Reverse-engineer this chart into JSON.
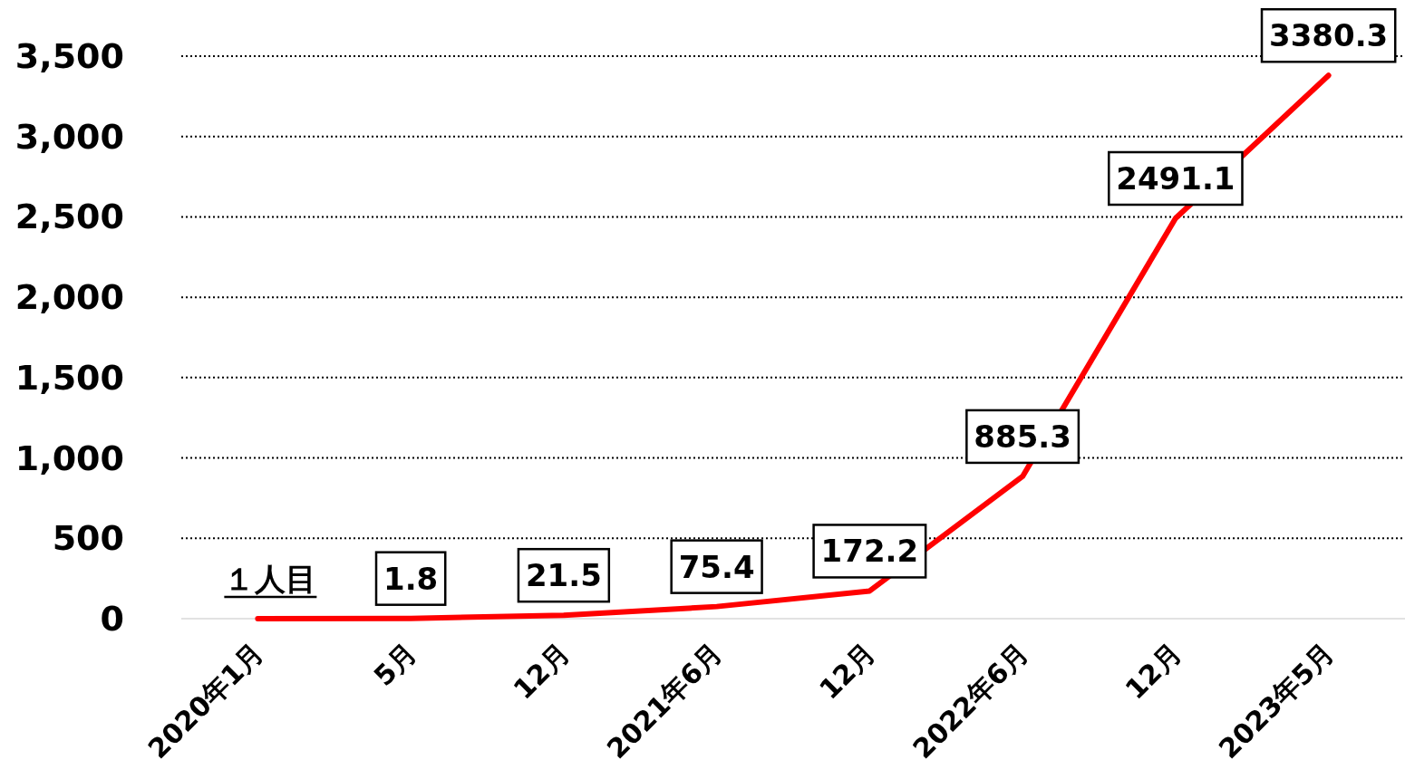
{
  "chart_data": {
    "type": "line",
    "categories": [
      "2020年1月",
      "5月",
      "12月",
      "2021年6月",
      "12月",
      "2022年6月",
      "12月",
      "2023年5月"
    ],
    "series": [
      {
        "color": "#ff0000",
        "values": [
          0,
          1.8,
          21.5,
          75.4,
          172.2,
          885.3,
          2491.1,
          3380.3
        ],
        "value_labels": [
          null,
          "1.8",
          "21.5",
          "75.4",
          "172.2",
          "885.3",
          "2491.1",
          "3380.3"
        ]
      }
    ],
    "annotations": [
      {
        "text": "１人目",
        "x": "2020年1月",
        "y": 0
      }
    ],
    "ylim": [
      0,
      3500
    ],
    "yticks": [
      {
        "value": 0,
        "label": "0"
      },
      {
        "value": 500,
        "label": "500"
      },
      {
        "value": 1000,
        "label": "1,000"
      },
      {
        "value": 1500,
        "label": "1,500"
      },
      {
        "value": 2000,
        "label": "2,000"
      },
      {
        "value": 2500,
        "label": "2,500"
      },
      {
        "value": 3000,
        "label": "3,000"
      },
      {
        "value": 3500,
        "label": "3,500"
      }
    ],
    "grid": "y",
    "line_style": "solid",
    "marker": "none"
  }
}
